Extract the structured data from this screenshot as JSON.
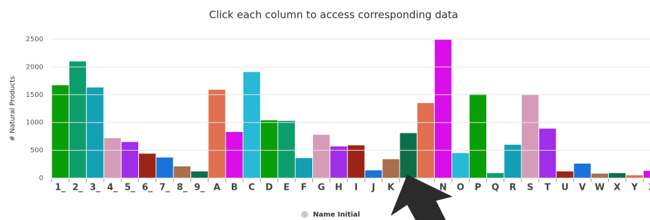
{
  "chart_data": {
    "type": "bar",
    "title": "Click each column to access corresponding data",
    "y_label": "# Natural Products",
    "legend": "Name Initial",
    "categories": [
      "1_",
      "2_",
      "3_",
      "4_",
      "5_",
      "6_",
      "7_",
      "8_",
      "9_",
      "A",
      "B",
      "C",
      "D",
      "E",
      "F",
      "G",
      "H",
      "I",
      "J",
      "K",
      null,
      null,
      "N",
      "O",
      "P",
      "Q",
      "R",
      "S",
      "T",
      "U",
      "V",
      "W",
      "X",
      "Y",
      "Z"
    ],
    "values": [
      1670,
      2100,
      1630,
      720,
      650,
      440,
      370,
      210,
      120,
      1590,
      830,
      1910,
      1040,
      1030,
      360,
      780,
      570,
      590,
      140,
      340,
      810,
      1350,
      2490,
      450,
      1510,
      90,
      600,
      1500,
      890,
      120,
      260,
      80,
      90,
      50,
      130
    ],
    "colors": [
      "#0a9e0a",
      "#0e9e6e",
      "#13a0b5",
      "#d59cb7",
      "#a02ee8",
      "#9b2416",
      "#1a73d9",
      "#a86e4d",
      "#0e6e4c",
      "#e07050",
      "#d90ee8",
      "#28b8d8",
      "#0a9e0a",
      "#0e9e6e",
      "#13a0b5",
      "#d59cb7",
      "#a02ee8",
      "#9b2416",
      "#1a73d9",
      "#a86e4d",
      "#0e6e4c",
      "#e07050",
      "#d90ee8",
      "#28b8d8",
      "#0a9e0a",
      "#0e9e6e",
      "#13a0b5",
      "#d59cb7",
      "#a02ee8",
      "#9b2416",
      "#1a73d9",
      "#a86e4d",
      "#0e6e4c",
      "#e07050",
      "#d90ee8"
    ],
    "ylim": [
      0,
      2500
    ],
    "yticks": [
      0,
      500,
      1000,
      1500,
      2000,
      2500
    ],
    "grid": true
  }
}
